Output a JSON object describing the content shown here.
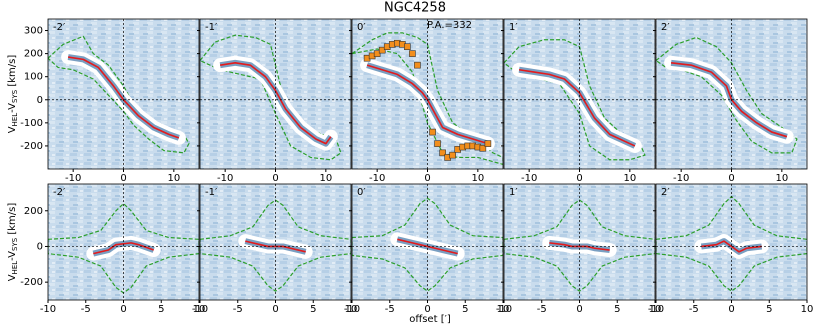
{
  "title": "NGC4258",
  "xlabel": "offset [′]",
  "chart_data": [
    {
      "type": "line",
      "label": "-2′",
      "ylabel": [
        "V",
        "HEL",
        "-V",
        "SYS",
        " [km/s]"
      ],
      "xlim": [
        -15,
        15
      ],
      "ylim": [
        -300,
        350
      ],
      "xticks": [
        -10,
        0,
        10
      ],
      "yticks": [
        -200,
        -100,
        0,
        100,
        200,
        300
      ],
      "series": [
        {
          "color": "#2ca02c",
          "dash": true,
          "x": [
            -15,
            -12,
            -8,
            -6,
            -3,
            0,
            2,
            5,
            9,
            12,
            13,
            12,
            8,
            5,
            2,
            0,
            -3,
            -6,
            -10,
            -13,
            -15
          ],
          "values": [
            180,
            240,
            275,
            200,
            150,
            60,
            -20,
            -90,
            -130,
            -150,
            -190,
            -230,
            -220,
            -170,
            -110,
            -50,
            20,
            90,
            130,
            140,
            180
          ]
        },
        {
          "color": "#e41a1c",
          "x": [
            -11,
            -8,
            -5,
            -2,
            0,
            3,
            6,
            9,
            11
          ],
          "values": [
            185,
            175,
            140,
            60,
            0,
            -70,
            -120,
            -150,
            -165
          ]
        }
      ]
    },
    {
      "type": "line",
      "label": "-1′",
      "xlim": [
        -15,
        15
      ],
      "ylim": [
        -300,
        350
      ],
      "xticks": [
        -10,
        0,
        10
      ],
      "yticks": [
        -200,
        -100,
        0,
        100,
        200,
        300
      ],
      "series": [
        {
          "color": "#2ca02c",
          "dash": true,
          "x": [
            -15,
            -12,
            -8,
            -4,
            -1,
            1,
            4,
            8,
            12,
            13,
            11,
            7,
            3,
            0,
            -3,
            -7,
            -11,
            -15
          ],
          "values": [
            170,
            250,
            280,
            270,
            240,
            60,
            -80,
            -140,
            -170,
            -230,
            -260,
            -250,
            -200,
            -60,
            90,
            110,
            130,
            170
          ]
        },
        {
          "color": "#e41a1c",
          "x": [
            -11,
            -8,
            -5,
            -2,
            0,
            2,
            5,
            8,
            10,
            11
          ],
          "values": [
            150,
            160,
            150,
            100,
            40,
            -40,
            -120,
            -170,
            -190,
            -160
          ]
        }
      ]
    },
    {
      "type": "line",
      "label": "0′",
      "annotation": "P.A.=332",
      "xlim": [
        -15,
        15
      ],
      "ylim": [
        -300,
        350
      ],
      "xticks": [
        -10,
        0,
        10
      ],
      "yticks": [
        -200,
        -100,
        0,
        100,
        200,
        300
      ],
      "series": [
        {
          "color": "#2ca02c",
          "dash": true,
          "x": [
            -15,
            -11,
            -8,
            -5,
            -2,
            0,
            2,
            5,
            10,
            13,
            15,
            15,
            10,
            6,
            3,
            0,
            -3,
            -6,
            -10,
            -15
          ],
          "values": [
            200,
            260,
            290,
            290,
            270,
            240,
            40,
            -100,
            -180,
            -230,
            -250,
            -280,
            -250,
            -250,
            -230,
            -100,
            120,
            200,
            220,
            200
          ]
        },
        {
          "color": "#e41a1c",
          "x": [
            -12,
            -9,
            -6,
            -3,
            -1,
            0,
            1,
            3,
            6,
            9,
            12
          ],
          "values": [
            150,
            130,
            110,
            70,
            30,
            0,
            -40,
            -120,
            -150,
            -170,
            -190
          ]
        },
        {
          "color": "#f28e1c",
          "marker": "square",
          "x": [
            -12,
            -11,
            -10,
            -9,
            -8,
            -7,
            -6,
            -5,
            -4,
            -3,
            -2,
            1,
            2,
            3,
            4,
            5,
            6,
            7,
            8,
            9,
            10,
            11,
            12
          ],
          "values": [
            180,
            190,
            200,
            215,
            230,
            240,
            245,
            240,
            230,
            200,
            150,
            -140,
            -190,
            -230,
            -250,
            -240,
            -215,
            -205,
            -200,
            -200,
            -205,
            -210,
            -190
          ]
        }
      ]
    },
    {
      "type": "line",
      "label": "1′",
      "xlim": [
        -15,
        15
      ],
      "ylim": [
        -300,
        350
      ],
      "xticks": [
        -10,
        0,
        10
      ],
      "yticks": [
        -200,
        -100,
        0,
        100,
        200,
        300
      ],
      "series": [
        {
          "color": "#2ca02c",
          "dash": true,
          "x": [
            -15,
            -12,
            -7,
            -3,
            0,
            2,
            5,
            9,
            12,
            13,
            10,
            6,
            2,
            0,
            -4,
            -8,
            -12,
            -15
          ],
          "values": [
            160,
            230,
            260,
            260,
            230,
            60,
            -80,
            -160,
            -190,
            -240,
            -260,
            -260,
            -200,
            -60,
            70,
            90,
            110,
            160
          ]
        },
        {
          "color": "#e41a1c",
          "x": [
            -12,
            -9,
            -6,
            -3,
            0,
            3,
            6,
            9,
            11
          ],
          "values": [
            130,
            120,
            110,
            90,
            30,
            -80,
            -150,
            -180,
            -200
          ]
        }
      ]
    },
    {
      "type": "line",
      "label": "2′",
      "xlim": [
        -15,
        15
      ],
      "ylim": [
        -300,
        350
      ],
      "xticks": [
        -10,
        0,
        10
      ],
      "yticks": [
        -200,
        -100,
        0,
        100,
        200,
        300
      ],
      "series": [
        {
          "color": "#2ca02c",
          "dash": true,
          "x": [
            -15,
            -11,
            -7,
            -3,
            0,
            3,
            6,
            10,
            13,
            12,
            8,
            4,
            1,
            -2,
            -6,
            -10,
            -13,
            -15
          ],
          "values": [
            170,
            240,
            270,
            230,
            160,
            40,
            -60,
            -120,
            -170,
            -230,
            -230,
            -180,
            -90,
            20,
            100,
            130,
            140,
            170
          ]
        },
        {
          "color": "#e41a1c",
          "x": [
            -12,
            -8,
            -4,
            -1,
            0,
            2,
            5,
            8,
            11
          ],
          "values": [
            160,
            150,
            120,
            60,
            0,
            -50,
            -100,
            -140,
            -160
          ]
        }
      ]
    },
    {
      "type": "line",
      "label": "-2′",
      "ylabel": [
        "V",
        "HEL",
        "-V",
        "SYS",
        " [km/s]"
      ],
      "xlim": [
        -10,
        10
      ],
      "ylim": [
        -300,
        350
      ],
      "xticks": [
        -10,
        -5,
        0,
        5,
        10
      ],
      "yticks": [
        -200,
        0,
        200
      ],
      "series": [
        {
          "color": "#2ca02c",
          "dash": true,
          "x": [
            -10,
            -6,
            -3,
            -1,
            0,
            1,
            3,
            6,
            10,
            10,
            6,
            3,
            1,
            0,
            -1,
            -3,
            -6,
            -10,
            -10
          ],
          "values": [
            40,
            50,
            90,
            200,
            240,
            200,
            90,
            50,
            40,
            -40,
            -60,
            -110,
            -230,
            -260,
            -230,
            -110,
            -60,
            -40,
            40
          ]
        },
        {
          "color": "#e41a1c",
          "x": [
            -4,
            -2,
            -1,
            1,
            2,
            4
          ],
          "values": [
            -40,
            -20,
            10,
            20,
            10,
            -20
          ]
        }
      ]
    },
    {
      "type": "line",
      "label": "-1′",
      "xlim": [
        -10,
        10
      ],
      "ylim": [
        -300,
        350
      ],
      "xticks": [
        -10,
        -5,
        0,
        5,
        10
      ],
      "yticks": [
        -200,
        0,
        200
      ],
      "series": [
        {
          "color": "#2ca02c",
          "dash": true,
          "x": [
            -10,
            -6,
            -3,
            -1,
            0,
            1,
            3,
            6,
            10,
            10,
            6,
            3,
            1,
            0,
            -1,
            -3,
            -6,
            -10,
            -10
          ],
          "values": [
            40,
            60,
            110,
            230,
            260,
            230,
            110,
            60,
            40,
            -40,
            -60,
            -110,
            -220,
            -250,
            -220,
            -110,
            -60,
            -40,
            40
          ]
        },
        {
          "color": "#e41a1c",
          "x": [
            -4,
            -2,
            -1,
            1,
            2,
            4
          ],
          "values": [
            30,
            10,
            0,
            0,
            -10,
            -30
          ]
        }
      ]
    },
    {
      "type": "line",
      "label": "0′",
      "xlim": [
        -10,
        10
      ],
      "ylim": [
        -300,
        350
      ],
      "xticks": [
        -10,
        -5,
        0,
        5,
        10
      ],
      "yticks": [
        -200,
        0,
        200
      ],
      "series": [
        {
          "color": "#2ca02c",
          "dash": true,
          "x": [
            -10,
            -6,
            -3,
            -1,
            0,
            1,
            3,
            6,
            10,
            10,
            6,
            3,
            1,
            0,
            -1,
            -3,
            -6,
            -10,
            -10
          ],
          "values": [
            50,
            60,
            120,
            240,
            270,
            240,
            120,
            60,
            50,
            -50,
            -70,
            -120,
            -220,
            -250,
            -220,
            -120,
            -70,
            -50,
            50
          ]
        },
        {
          "color": "#e41a1c",
          "x": [
            -4,
            -2,
            -1,
            1,
            2,
            4
          ],
          "values": [
            40,
            20,
            10,
            -10,
            -20,
            -40
          ]
        }
      ]
    },
    {
      "type": "line",
      "label": "1′",
      "xlim": [
        -10,
        10
      ],
      "ylim": [
        -300,
        350
      ],
      "xticks": [
        -10,
        -5,
        0,
        5,
        10
      ],
      "yticks": [
        -200,
        0,
        200
      ],
      "series": [
        {
          "color": "#2ca02c",
          "dash": true,
          "x": [
            -10,
            -6,
            -3,
            -1,
            0,
            1,
            3,
            6,
            10,
            10,
            6,
            3,
            1,
            0,
            -1,
            -3,
            -6,
            -10,
            -10
          ],
          "values": [
            40,
            60,
            110,
            230,
            260,
            230,
            110,
            60,
            40,
            -40,
            -60,
            -110,
            -220,
            -250,
            -220,
            -110,
            -60,
            -40,
            40
          ]
        },
        {
          "color": "#e41a1c",
          "x": [
            -4,
            -2,
            -1,
            1,
            2,
            4
          ],
          "values": [
            20,
            10,
            0,
            0,
            -10,
            -20
          ]
        }
      ]
    },
    {
      "type": "line",
      "label": "2′",
      "xlim": [
        -10,
        10
      ],
      "ylim": [
        -300,
        350
      ],
      "xticks": [
        -10,
        -5,
        0,
        5,
        10
      ],
      "yticks": [
        -200,
        0,
        200
      ],
      "series": [
        {
          "color": "#2ca02c",
          "dash": true,
          "x": [
            -10,
            -6,
            -3,
            -1,
            0,
            1,
            3,
            6,
            10,
            10,
            6,
            3,
            1,
            0,
            -1,
            -3,
            -6,
            -10,
            -10
          ],
          "values": [
            40,
            60,
            120,
            240,
            280,
            240,
            120,
            60,
            40,
            -40,
            -60,
            -110,
            -220,
            -250,
            -220,
            -110,
            -60,
            -40,
            40
          ]
        },
        {
          "color": "#e41a1c",
          "x": [
            -4,
            -2,
            -1,
            1,
            2,
            4
          ],
          "values": [
            0,
            10,
            30,
            -30,
            -10,
            0
          ]
        }
      ]
    }
  ]
}
